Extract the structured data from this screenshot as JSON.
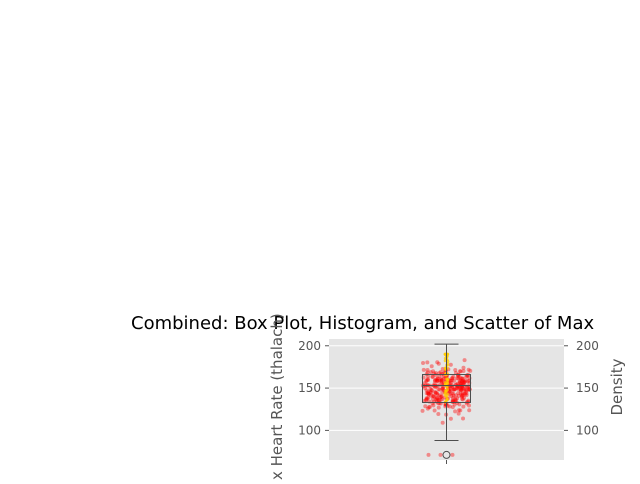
{
  "chart_data": {
    "type": "box",
    "title": "Combined: Box Plot, Histogram, and Scatter of Max",
    "ylabel": "x Heart Rate (thalach)",
    "ylabel_right": "Density",
    "ylim": [
      65,
      208
    ],
    "yticks": [
      100,
      150,
      200
    ],
    "right_yticks": [
      100,
      150,
      200
    ],
    "grid": true,
    "background": "#e5e5e5",
    "box": {
      "whisker_low": 88,
      "q1": 133,
      "median": 153,
      "q3": 166,
      "whisker_high": 202,
      "outliers": [
        71
      ],
      "edge_color": "#4d4d4d"
    },
    "scatter": {
      "color": "#ff0000",
      "highlight_color": "#ffcc00",
      "opacity": 0.4,
      "n_points": 303
    }
  }
}
